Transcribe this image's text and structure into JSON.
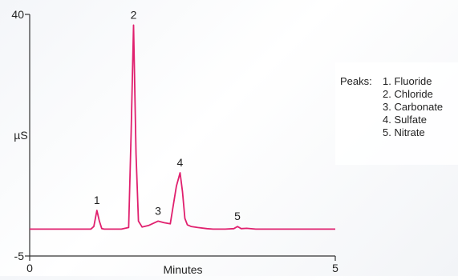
{
  "chart_data": {
    "type": "line",
    "xlabel": "Minutes",
    "ylabel": "µS",
    "xlim": [
      0,
      5
    ],
    "ylim": [
      -5,
      40
    ],
    "x_ticks": [
      "0",
      "5"
    ],
    "y_ticks": [
      "40",
      "-5"
    ],
    "grid": false,
    "legend_position": "right",
    "series": [
      {
        "color": "#e0206e",
        "x": [
          0.0,
          1.0,
          1.05,
          1.1,
          1.14,
          1.18,
          1.22,
          1.3,
          1.5,
          1.62,
          1.66,
          1.7,
          1.74,
          1.78,
          1.84,
          1.95,
          2.1,
          2.2,
          2.3,
          2.4,
          2.46,
          2.5,
          2.54,
          2.58,
          2.64,
          2.75,
          2.9,
          3.0,
          3.2,
          3.34,
          3.4,
          3.46,
          3.55,
          3.7,
          4.0,
          4.2,
          5.0
        ],
        "y": [
          0.0,
          0.0,
          0.5,
          3.5,
          1.5,
          0.1,
          0.0,
          0.0,
          0.0,
          0.3,
          18.0,
          38.0,
          14.0,
          1.5,
          0.4,
          0.7,
          1.5,
          1.2,
          1.0,
          8.0,
          10.5,
          7.0,
          2.0,
          0.8,
          0.5,
          0.3,
          0.1,
          0.0,
          0.0,
          0.1,
          0.5,
          0.1,
          0.15,
          0.0,
          0.0,
          0.0,
          0.0
        ]
      }
    ],
    "peak_labels": [
      {
        "label": "1",
        "x": 1.1,
        "y": 3.5
      },
      {
        "label": "2",
        "x": 1.7,
        "y": 38.0
      },
      {
        "label": "3",
        "x": 2.1,
        "y": 1.5
      },
      {
        "label": "4",
        "x": 2.46,
        "y": 10.5
      },
      {
        "label": "5",
        "x": 3.4,
        "y": 0.5
      }
    ],
    "legend": {
      "title": "Peaks:",
      "items": [
        "1. Fluoride",
        "2. Chloride",
        "3. Carbonate",
        "4. Sulfate",
        "5. Nitrate"
      ]
    }
  }
}
